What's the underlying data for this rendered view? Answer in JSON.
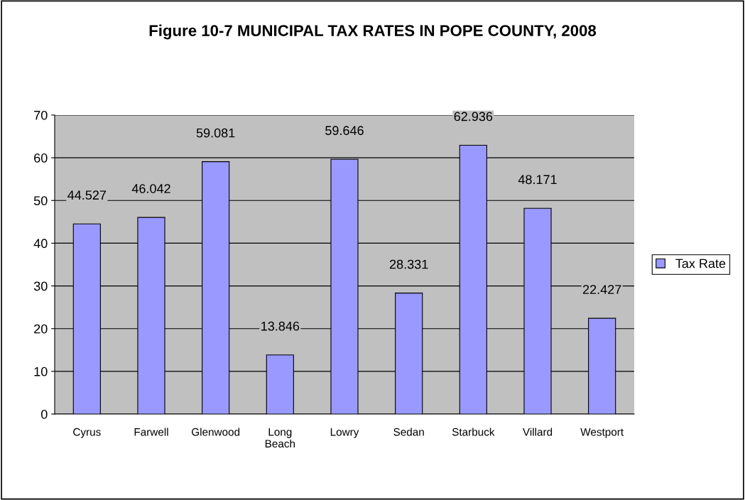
{
  "chart_data": {
    "type": "bar",
    "title": "Figure 10-7 MUNICIPAL TAX RATES IN POPE COUNTY, 2008",
    "categories": [
      "Cyrus",
      "Farwell",
      "Glenwood",
      "Long\nBeach",
      "Lowry",
      "Sedan",
      "Starbuck",
      "Villard",
      "Westport"
    ],
    "series": [
      {
        "name": "Tax Rate",
        "color": "#9999ff",
        "values": [
          44.527,
          46.042,
          59.081,
          13.846,
          59.646,
          28.331,
          62.936,
          48.171,
          22.427
        ]
      }
    ],
    "ylim": [
      0,
      70
    ],
    "yticks": [
      0,
      10,
      20,
      30,
      40,
      50,
      60,
      70
    ],
    "grid": "y",
    "legend": "right",
    "data_labels": true
  }
}
